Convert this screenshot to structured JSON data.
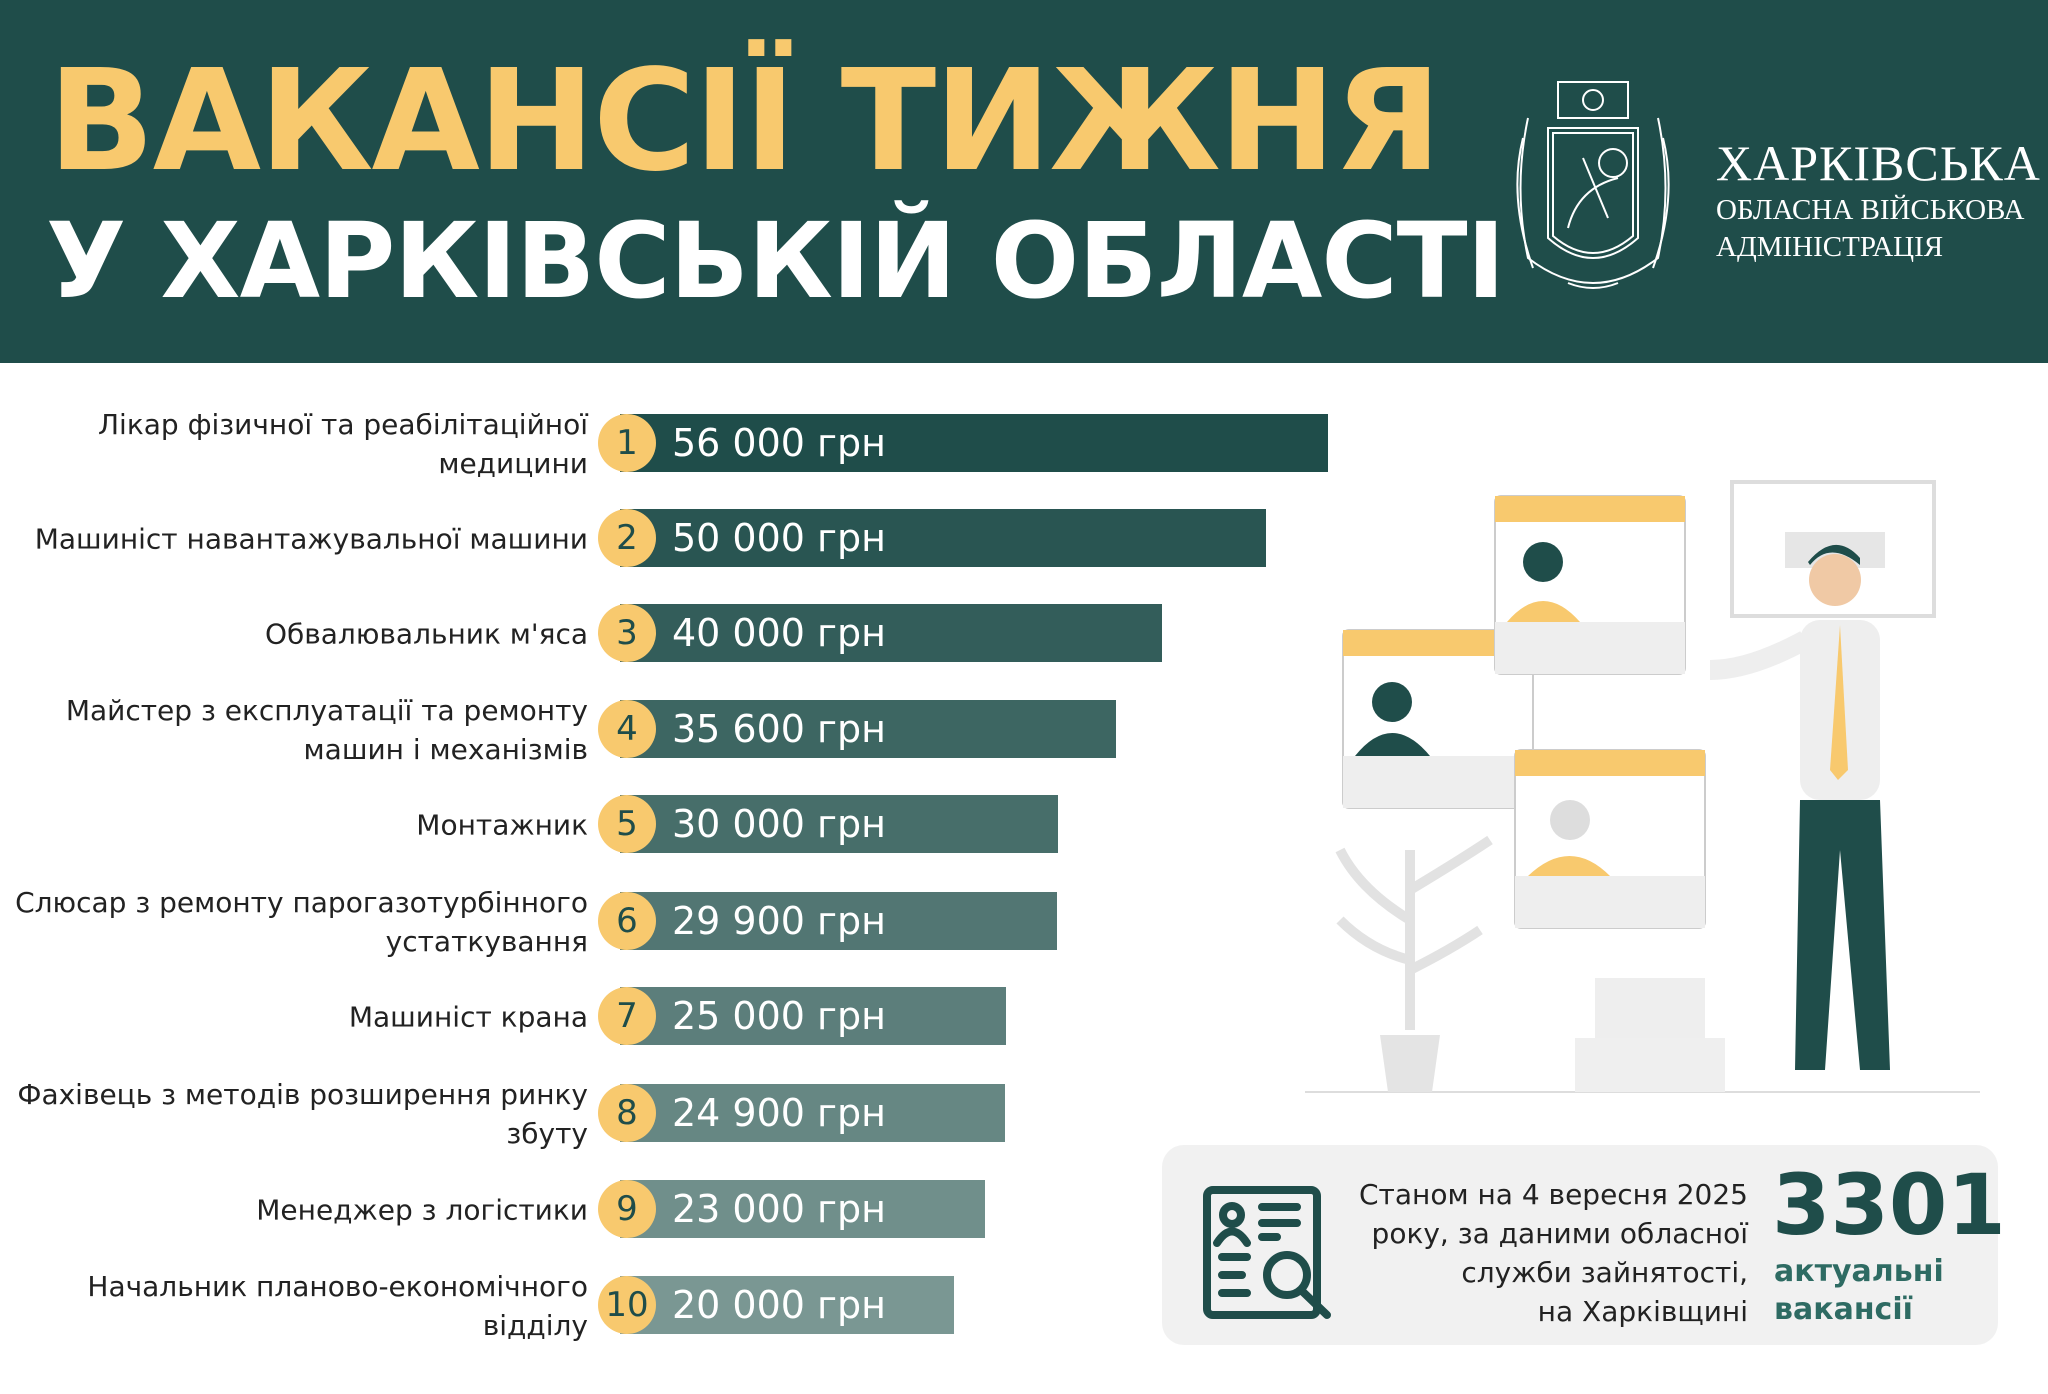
{
  "header": {
    "title_line1": "ВАКАНСІЇ ТИЖНЯ",
    "title_line2": "У ХАРКІВСЬКІЙ ОБЛАСТІ",
    "org_line1": "ХАРКІВСЬКА",
    "org_line2": "ОБЛАСНА ВІЙСЬКОВА",
    "org_line3": "АДМІНІСТРАЦІЯ",
    "logo": "kharkiv-oblast-coat-of-arms"
  },
  "colors": {
    "header_bg": "#1f4d4a",
    "accent": "#f8c96e",
    "bar_dark": "#1f4d4a",
    "bar_light": "#7a9793"
  },
  "chart_data": {
    "type": "bar",
    "orientation": "horizontal",
    "categories": [
      "Лікар фізичної та реабілітаційної медицини",
      "Машиніст навантажувальної машини",
      "Обвалювальник м'яса",
      "Майстер з експлуатації та ремонту машин і механізмів",
      "Монтажник",
      "Слюсар з ремонту парогазотурбінного устаткування",
      "Машиніст крана",
      "Фахівець з методів розширення ринку збуту",
      "Менеджер з логістики",
      "Начальник планово-економічного відділу"
    ],
    "values": [
      56000,
      50000,
      40000,
      35600,
      30000,
      29900,
      25000,
      24900,
      23000,
      20000
    ],
    "ranks": [
      "1",
      "2",
      "3",
      "4",
      "5",
      "6",
      "7",
      "8",
      "9",
      "10"
    ],
    "labels": [
      "56 000 грн",
      "50 000 грн",
      "40 000 грн",
      "35 600 грн",
      "30 000 грн",
      "29 900 грн",
      "25 000 грн",
      "24 900 грн",
      "23 000 грн",
      "20 000 грн"
    ],
    "unit": "грн"
  },
  "stat": {
    "text_lines": [
      "Станом на 4 вересня 2025",
      "року, за даними обласної",
      "служби зайнятості,",
      "на Харківщині"
    ],
    "count": "3301",
    "caption_line1": "актуальні",
    "caption_line2": "вакансії",
    "icon": "resume-search-icon"
  }
}
